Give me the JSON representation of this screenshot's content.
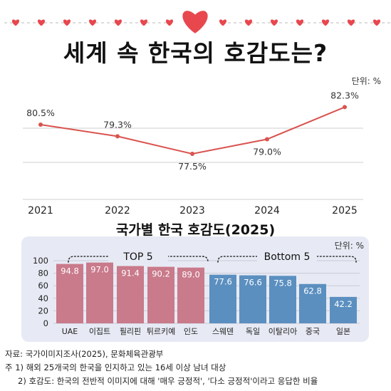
{
  "title": "세계 속 한국의 호감도는?",
  "unit_label": "단위: %",
  "bar_title": "국가별 한국 호감도(2025)",
  "groups": {
    "top": "TOP 5",
    "bottom": "Bottom 5"
  },
  "footnotes": {
    "source": "자료: 국가이미지조사(2025), 문화체육관광부",
    "note1": "주 1) 해외 25개국의 한국을 인지하고 있는 16세 이상 남녀 대상",
    "note2": "2) 호감도: 한국의 전반적 이미지에 대해 '매우 긍정적', '다소 긍정적'이라고 응답한 비율"
  },
  "colors": {
    "line": "#d9534f",
    "top_bar": "#c97a8b",
    "bottom_bar": "#5b8fc0",
    "panel": "#e7eaf4",
    "heart": "#e8474e"
  },
  "chart_data": [
    {
      "type": "line",
      "x": [
        "2021",
        "2022",
        "2023",
        "2024",
        "2025"
      ],
      "values": [
        80.5,
        79.3,
        77.5,
        79.0,
        82.3
      ],
      "ylim": [
        75.5,
        83.5
      ],
      "grid": true
    },
    {
      "type": "bar",
      "title": "국가별 한국 호감도(2025)",
      "categories": [
        "UAE",
        "이집트",
        "필리핀",
        "튀르키예",
        "인도",
        "스웨덴",
        "독일",
        "이탈리아",
        "중국",
        "일본"
      ],
      "values": [
        94.8,
        97.0,
        91.4,
        90.2,
        89.0,
        77.6,
        76.6,
        75.8,
        62.8,
        42.2
      ],
      "yticks": [
        0,
        20,
        40,
        60,
        80,
        100
      ],
      "ylim": [
        0,
        100
      ],
      "grid": true
    }
  ]
}
